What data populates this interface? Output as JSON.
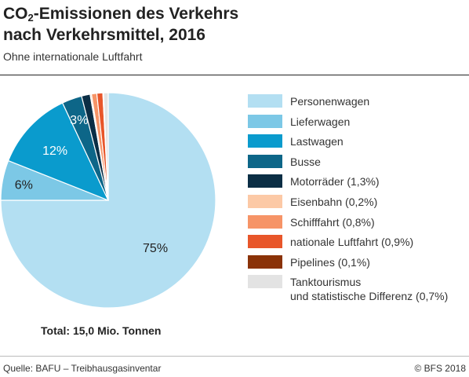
{
  "header": {
    "title_prefix": "CO",
    "title_sub": "2",
    "title_line1_rest": "-Emissionen des Verkehrs",
    "title_line2": "nach Verkehrsmittel, 2016",
    "subtitle": "Ohne internationale Luftfahrt"
  },
  "chart_data": {
    "type": "pie",
    "title": "CO2-Emissionen des Verkehrs nach Verkehrsmittel, 2016",
    "subtitle": "Ohne internationale Luftfahrt",
    "unit": "%",
    "start_angle_deg": 0,
    "direction": "clockwise",
    "slices": [
      {
        "label": "Personenwagen",
        "value": 75,
        "color": "#b3dff2",
        "data_label": "75%"
      },
      {
        "label": "Lieferwagen",
        "value": 6,
        "color": "#7cc8e6",
        "data_label": "6%"
      },
      {
        "label": "Lastwagen",
        "value": 12,
        "color": "#0a9bcd",
        "data_label": "12%"
      },
      {
        "label": "Busse",
        "value": 3,
        "color": "#0d6688",
        "data_label": "3%"
      },
      {
        "label": "Motorräder (1,3%)",
        "value": 1.3,
        "color": "#0b2e45",
        "data_label": ""
      },
      {
        "label": "Eisenbahn (0,2%)",
        "value": 0.2,
        "color": "#fcc9a6",
        "data_label": ""
      },
      {
        "label": "Schifffahrt (0,8%)",
        "value": 0.8,
        "color": "#f69467",
        "data_label": ""
      },
      {
        "label": "nationale Luftfahrt (0,9%)",
        "value": 0.9,
        "color": "#e8562a",
        "data_label": ""
      },
      {
        "label": "Pipelines (0,1%)",
        "value": 0.1,
        "color": "#8a3208",
        "data_label": ""
      },
      {
        "label": "Tanktourismus\nund statistische Differenz (0,7%)",
        "value": 0.7,
        "color": "#e3e3e3",
        "data_label": ""
      }
    ],
    "legend_placement": "right"
  },
  "legend": {
    "items": [
      {
        "label": "Personenwagen",
        "color": "#b3dff2"
      },
      {
        "label": "Lieferwagen",
        "color": "#7cc8e6"
      },
      {
        "label": "Lastwagen",
        "color": "#0a9bcd"
      },
      {
        "label": "Busse",
        "color": "#0d6688"
      },
      {
        "label": "Motorräder (1,3%)",
        "color": "#0b2e45"
      },
      {
        "label": "Eisenbahn (0,2%)",
        "color": "#fcc9a6"
      },
      {
        "label": "Schifffahrt (0,8%)",
        "color": "#f69467"
      },
      {
        "label": "nationale Luftfahrt (0,9%)",
        "color": "#e8562a"
      },
      {
        "label": "Pipelines (0,1%)",
        "color": "#8a3208"
      },
      {
        "label": "Tanktourismus\nund statistische Differenz (0,7%)",
        "color": "#e3e3e3"
      }
    ]
  },
  "total": "Total: 15,0 Mio. Tonnen",
  "footer": {
    "source": "Quelle: BAFU – Treibhausgasinventar",
    "copyright": "© BFS 2018"
  }
}
